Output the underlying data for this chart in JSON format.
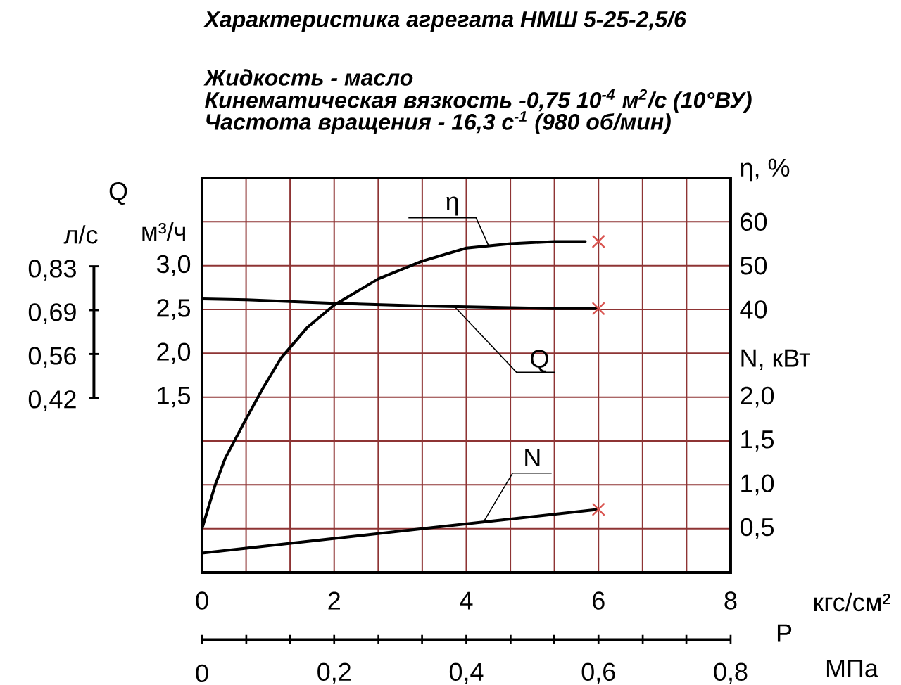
{
  "chart_data": {
    "type": "line",
    "title": "Характеристика агрегата НМШ 5-25-2,5/6",
    "annotations": [
      "Жидкость - масло",
      "Кинематическая вязкость -0,75 10$^{-4}$ м$^{2}$/с (10°ВУ)",
      "Частота вращения - 16,3 с$^{-1}$ (980 об/мин)",
      "Q",
      "л/с",
      "0,83",
      "0,69",
      "0,56",
      "0,42",
      "P"
    ],
    "xlabel": "кгс/см²",
    "x2label": "МПа",
    "ylabel": "м³/ч",
    "y2label": "η, %",
    "y3label": "N, кВт",
    "xlim": [
      0,
      8
    ],
    "xticks": [
      0,
      {
        "value": 0.667,
        "label": null
      },
      {
        "value": 1.333,
        "label": null
      },
      2,
      {
        "value": 2.667,
        "label": null
      },
      {
        "value": 3.333,
        "label": null
      },
      4,
      {
        "value": 4.667,
        "label": null
      },
      {
        "value": 5.333,
        "label": null
      },
      6,
      {
        "value": 6.667,
        "label": null
      },
      {
        "value": 7.333,
        "label": null
      },
      8
    ],
    "x2lim": [
      0,
      0.8
    ],
    "x2ticks": [
      0,
      {
        "value": 0.067,
        "label": null
      },
      {
        "value": 0.133,
        "label": null
      },
      {
        "value": 0.2,
        "label": "0,2"
      },
      {
        "value": 0.267,
        "label": null
      },
      {
        "value": 0.333,
        "label": null
      },
      {
        "value": 0.4,
        "label": "0,4"
      },
      {
        "value": 0.467,
        "label": null
      },
      {
        "value": 0.533,
        "label": null
      },
      {
        "value": 0.6,
        "label": "0,6"
      },
      {
        "value": 0.667,
        "label": null
      },
      {
        "value": 0.733,
        "label": null
      },
      {
        "value": 0.8,
        "label": "0,8"
      }
    ],
    "ylim": [
      -0.5,
      4
    ],
    "yticks": [
      {
        "value": 0,
        "label": null
      },
      {
        "value": 0.5,
        "label": null
      },
      {
        "value": 1,
        "label": null
      },
      {
        "value": 1.5,
        "label": "1,5"
      },
      {
        "value": 2,
        "label": "2,0"
      },
      {
        "value": 2.5,
        "label": "2,5"
      },
      {
        "value": 3,
        "label": "3,0"
      },
      {
        "value": 3.5,
        "label": null
      }
    ],
    "y2lim": [
      -20,
      70
    ],
    "y2ticks": [
      40,
      50,
      60
    ],
    "y3lim": [
      0,
      4.5
    ],
    "y3ticks": [
      {
        "value": 0.5,
        "label": "0,5"
      },
      {
        "value": 1,
        "label": "1,0"
      },
      {
        "value": 1.5,
        "label": "1,5"
      },
      {
        "value": 2,
        "label": "2,0"
      }
    ],
    "grid": true,
    "legend": false,
    "marker": "none",
    "series": [
      {
        "name": "η",
        "color": "#000000",
        "axis": "y2",
        "x": [
          0,
          0.2,
          0.35,
          0.63,
          0.92,
          1.2,
          1.6,
          2,
          2.67,
          3.33,
          4,
          4.67,
          5.33,
          5.8
        ],
        "values": [
          -10,
          0,
          6,
          14,
          22,
          29,
          36,
          41,
          47,
          51,
          54,
          55,
          55.5,
          55.5
        ]
      },
      {
        "name": "Q",
        "color": "#000000",
        "x": [
          0,
          0.67,
          2,
          3.33,
          5.33,
          6
        ],
        "values": [
          2.62,
          2.61,
          2.57,
          2.54,
          2.51,
          2.51
        ]
      },
      {
        "name": "N",
        "color": "#000000",
        "axis": "y3",
        "x": [
          0,
          3.33,
          6
        ],
        "values": [
          0.22,
          0.5,
          0.72
        ]
      },
      {
        "type": "scatter",
        "color": "#d9534f",
        "axis": "y2",
        "marker": "cross",
        "x": [
          6
        ],
        "values": [
          55.5
        ]
      },
      {
        "type": "scatter",
        "color": "#d9534f",
        "marker": "cross",
        "x": [
          6
        ],
        "values": [
          2.51
        ]
      },
      {
        "type": "scatter",
        "color": "#d9534f",
        "axis": "y3",
        "marker": "cross",
        "x": [
          6
        ],
        "values": [
          0.72
        ]
      }
    ]
  }
}
